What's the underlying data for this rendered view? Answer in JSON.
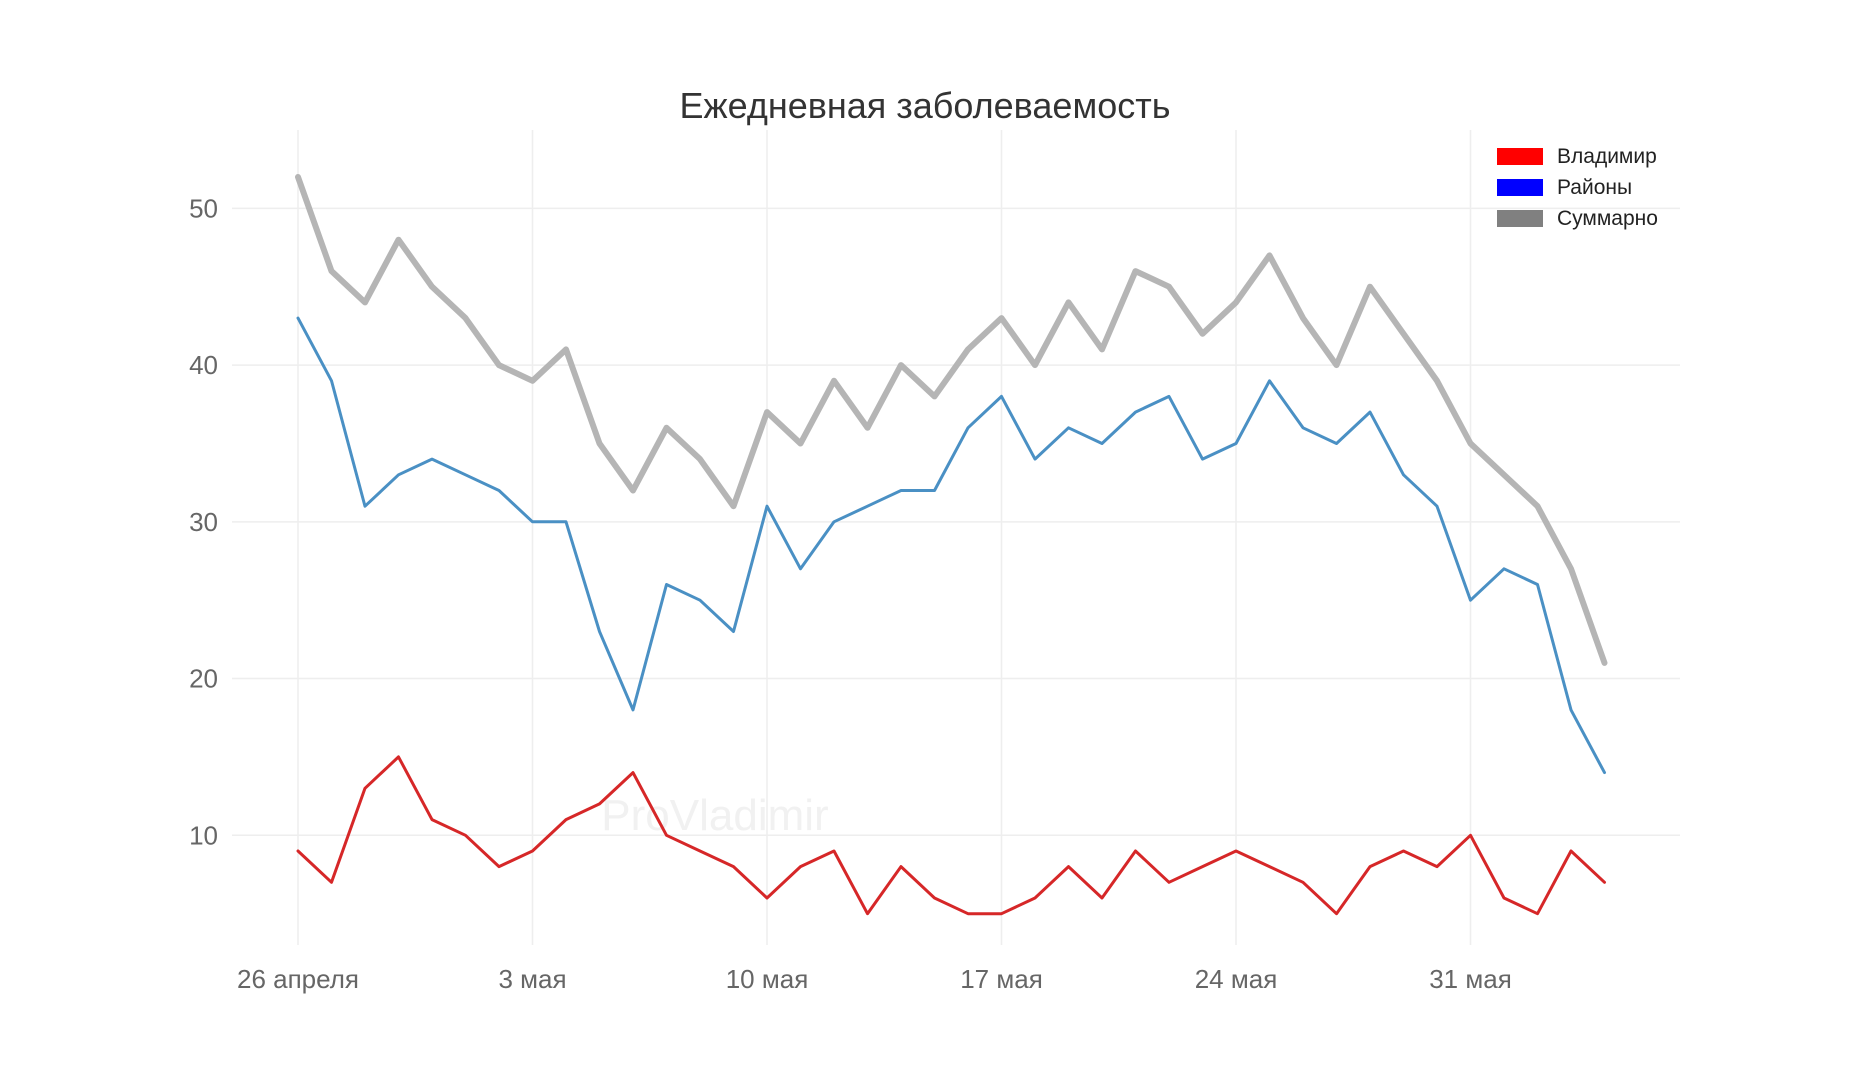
{
  "chart_data": {
    "type": "line",
    "title": "Ежедневная заболеваемость",
    "watermark": "ProVladimir",
    "xlabel": "",
    "ylabel": "",
    "ylim": [
      3,
      55
    ],
    "yticks": [
      10,
      20,
      30,
      40,
      50
    ],
    "x_ticks": [
      {
        "index": 0,
        "label": "26 апреля"
      },
      {
        "index": 7,
        "label": "3 мая"
      },
      {
        "index": 14,
        "label": "10 мая"
      },
      {
        "index": 21,
        "label": "17 мая"
      },
      {
        "index": 28,
        "label": "24 мая"
      },
      {
        "index": 35,
        "label": "31 мая"
      }
    ],
    "legend_position": "top-right",
    "legend": [
      {
        "label": "Владимир",
        "color": "#ff0000"
      },
      {
        "label": "Районы",
        "color": "#0000ff"
      },
      {
        "label": "Суммарно",
        "color": "#808080"
      }
    ],
    "series": [
      {
        "name": "Суммарно",
        "color": "#b5b5b5",
        "width": 6,
        "values": [
          52,
          46,
          44,
          48,
          45,
          43,
          40,
          39,
          41,
          35,
          32,
          36,
          34,
          31,
          37,
          35,
          39,
          36,
          40,
          38,
          41,
          43,
          40,
          44,
          41,
          46,
          45,
          42,
          44,
          47,
          43,
          40,
          45,
          42,
          39,
          35,
          33,
          31,
          27,
          21
        ]
      },
      {
        "name": "Районы",
        "color": "#4a90c4",
        "width": 3,
        "values": [
          43,
          39,
          31,
          33,
          34,
          33,
          32,
          30,
          30,
          23,
          18,
          26,
          25,
          23,
          31,
          27,
          30,
          31,
          32,
          32,
          36,
          38,
          34,
          36,
          35,
          37,
          38,
          34,
          35,
          39,
          36,
          35,
          37,
          33,
          31,
          25,
          27,
          26,
          18,
          14
        ]
      },
      {
        "name": "Владимир",
        "color": "#d62728",
        "width": 3,
        "values": [
          9,
          7,
          13,
          15,
          11,
          10,
          8,
          9,
          11,
          12,
          14,
          10,
          9,
          8,
          6,
          8,
          9,
          5,
          8,
          6,
          5,
          5,
          6,
          8,
          6,
          9,
          7,
          8,
          9,
          8,
          7,
          5,
          8,
          9,
          8,
          10,
          6,
          5,
          9,
          7
        ]
      }
    ]
  }
}
